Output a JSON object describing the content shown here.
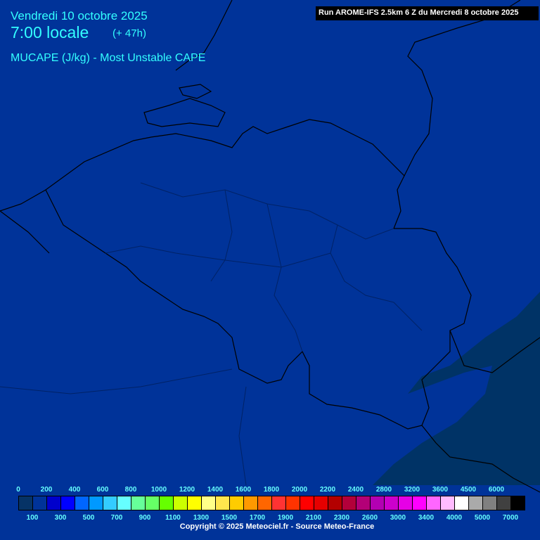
{
  "header": {
    "date": "Vendredi 10 octobre 2025",
    "time": "7:00 locale",
    "lead": "(+ 47h)",
    "parameter": "MUCAPE (J/kg) - Most Unstable CAPE",
    "run": "Run AROME-IFS 2.5km 6 Z du Mercredi 8 octobre 2025"
  },
  "map": {
    "background_color": "#003399",
    "low_value_color": "#003366",
    "border_color": "#000000"
  },
  "legend": {
    "colors": [
      "#063366",
      "#003399",
      "#0000cc",
      "#0000ff",
      "#0066ff",
      "#0099ff",
      "#33ccff",
      "#66ffff",
      "#66ff99",
      "#66ff66",
      "#66ff00",
      "#ccff00",
      "#ffff00",
      "#ffff88",
      "#ffe64d",
      "#ffcc00",
      "#ff9900",
      "#ff6600",
      "#ff3333",
      "#ff3300",
      "#ff0000",
      "#e60000",
      "#b30000",
      "#b3003a",
      "#b30077",
      "#b300b3",
      "#cc00cc",
      "#e600e6",
      "#ff00ff",
      "#ff66ff",
      "#ffbbff",
      "#ffffff",
      "#aaaaaa",
      "#808080",
      "#404040",
      "#000000"
    ],
    "top_labels": [
      "0",
      "200",
      "400",
      "600",
      "800",
      "1000",
      "1200",
      "1400",
      "1600",
      "1800",
      "2000",
      "2200",
      "2400",
      "2800",
      "3200",
      "3600",
      "4500",
      "6000"
    ],
    "bottom_labels": [
      "100",
      "300",
      "500",
      "700",
      "900",
      "1100",
      "1300",
      "1500",
      "1700",
      "1900",
      "2100",
      "2300",
      "2600",
      "3000",
      "3400",
      "4000",
      "5000",
      "7000"
    ]
  },
  "footer": {
    "copyright": "Copyright © 2025 Meteociel.fr - Source Meteo-France"
  }
}
